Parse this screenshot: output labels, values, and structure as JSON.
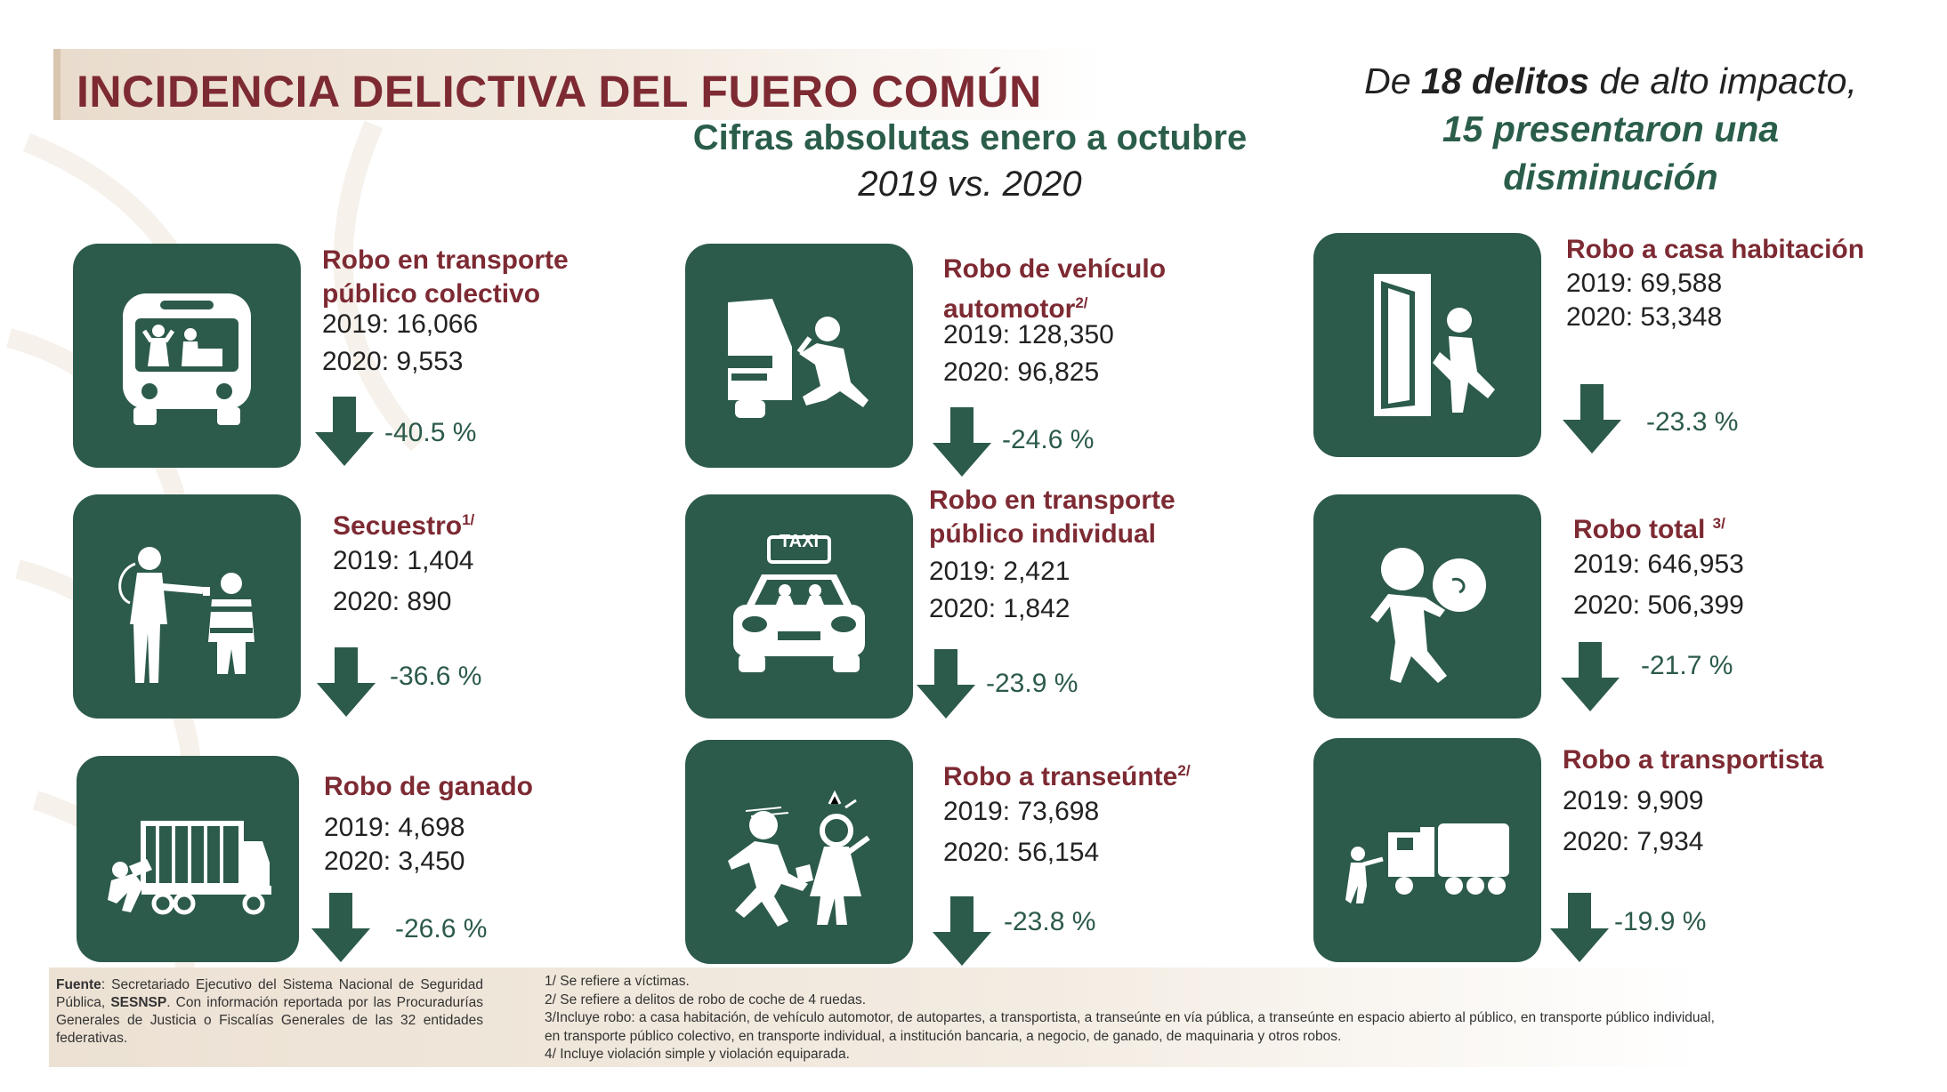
{
  "header": {
    "title": "INCIDENCIA DELICTIVA DEL FUERO COMÚN",
    "subtitle": "Cifras absolutas enero a octubre",
    "subtitle_years": "2019 vs. 2020",
    "headline_pre": "De ",
    "headline_bold": "18 delitos",
    "headline_post": " de alto impacto,",
    "headline_green1": "15 presentaron una",
    "headline_green2": "disminución"
  },
  "cards": [
    {
      "name1": "Robo en transporte",
      "name2": "público colectivo",
      "sup": "",
      "v2019": "2019: 16,066",
      "v2020": "2020: 9,553",
      "pct": "-40.5 %",
      "icon": "bus-icon"
    },
    {
      "name1": "Robo de vehículo",
      "name2": "automotor",
      "sup": "2/",
      "v2019": "2019: 128,350",
      "v2020": "2020: 96,825",
      "pct": "-24.6 %",
      "icon": "car-theft-icon"
    },
    {
      "name1": "Robo a casa habitación",
      "name2": "",
      "sup": "",
      "v2019": "2019: 69,588",
      "v2020": "2020: 53,348",
      "pct": "-23.3 %",
      "icon": "house-break-in-icon"
    },
    {
      "name1": "Secuestro",
      "name2": "",
      "sup": "1/",
      "v2019": "2019: 1,404",
      "v2020": "2020: 890",
      "pct": "-36.6 %",
      "icon": "kidnapping-icon"
    },
    {
      "name1": "Robo en transporte",
      "name2": "público individual",
      "sup": "",
      "v2019": "2019: 2,421",
      "v2020": "2020: 1,842",
      "pct": "-23.9 %",
      "icon": "taxi-icon",
      "taxi_label": "TAXI"
    },
    {
      "name1": "Robo total ",
      "name2": "",
      "sup": "3/",
      "v2019": "2019: 646,953",
      "v2020": "2020: 506,399",
      "pct": "-21.7 %",
      "icon": "thief-bag-icon"
    },
    {
      "name1": "Robo de ganado",
      "name2": "",
      "sup": "",
      "v2019": "2019: 4,698",
      "v2020": "2020: 3,450",
      "pct": "-26.6 %",
      "icon": "livestock-truck-icon"
    },
    {
      "name1": "Robo a transeúnte",
      "name2": "",
      "sup": "2/",
      "v2019": "2019: 73,698",
      "v2020": "2020: 56,154",
      "pct": "-23.8 %",
      "icon": "pedestrian-robbery-icon"
    },
    {
      "name1": "Robo a transportista",
      "name2": "",
      "sup": "",
      "v2019": "2019: 9,909",
      "v2020": "2020: 7,934",
      "pct": "-19.9 %",
      "icon": "truck-robbery-icon"
    }
  ],
  "footer": {
    "fuente_label": "Fuente",
    "fuente_text1": ": Secretariado Ejecutivo del Sistema Nacional de Seguridad Pública, ",
    "fuente_bold": "SESNSP",
    "fuente_text2": ". Con información reportada por las Procuradurías Generales de Justicia o Fiscalías Generales de las 32 entidades federativas.",
    "notes": [
      "1/ Se refiere a víctimas.",
      "2/ Se refiere a delitos de robo de coche de 4 ruedas.",
      "3/Incluye robo: a casa habitación, de vehículo automotor, de autopartes, a transportista, a transeúnte en vía pública, a transeúnte en espacio abierto al público, en transporte público individual,",
      "en transporte público colectivo, en transporte individual, a institución bancaria, a negocio, de ganado, de maquinaria y otros robos.",
      "4/ Incluye violación simple y violación equiparada."
    ]
  },
  "colors": {
    "green": "#2c5a4b",
    "maroon": "#7d2a33",
    "beige": "#e9dccd"
  }
}
